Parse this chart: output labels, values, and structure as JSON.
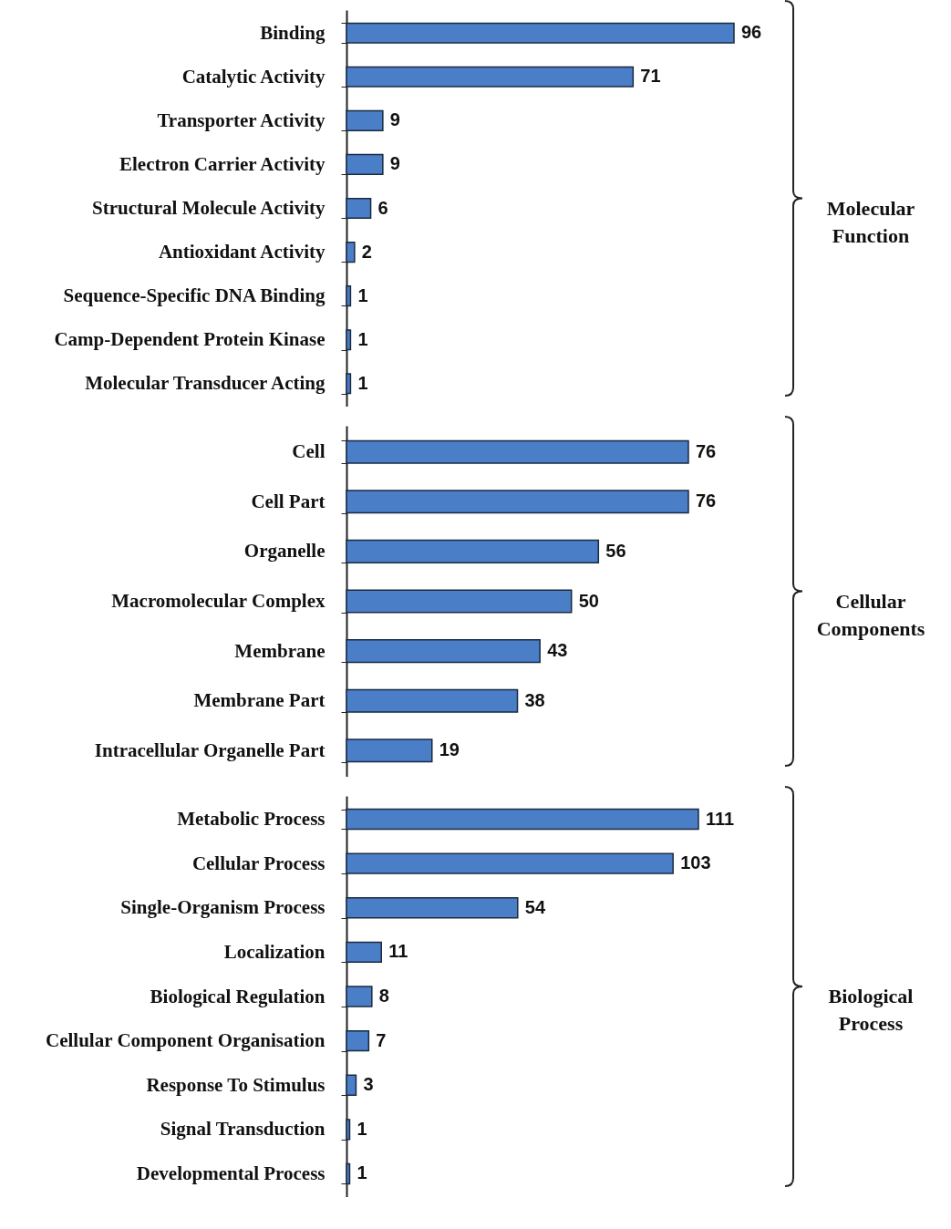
{
  "chart_data": [
    {
      "type": "bar",
      "orientation": "horizontal",
      "annotations": [
        "Molecular Function"
      ],
      "categories": [
        "Binding",
        "Catalytic Activity",
        "Transporter Activity",
        "Electron Carrier Activity",
        "Structural Molecule Activity",
        "Antioxidant Activity",
        "Sequence-Specific DNA Binding",
        "Camp-Dependent Protein Kinase",
        "Molecular Transducer Acting"
      ],
      "values": [
        96,
        71,
        9,
        9,
        6,
        2,
        1,
        1,
        1
      ],
      "color": "#4a7ec6",
      "data_labels": true,
      "tick_labels": "y"
    },
    {
      "type": "bar",
      "orientation": "horizontal",
      "annotations": [
        "Cellular Components"
      ],
      "categories": [
        "Cell",
        "Cell Part",
        "Organelle",
        "Macromolecular Complex",
        "Membrane",
        "Membrane Part",
        "Intracellular Organelle Part"
      ],
      "values": [
        76,
        76,
        56,
        50,
        43,
        38,
        19
      ],
      "color": "#4a7ec6",
      "data_labels": true,
      "tick_labels": "y"
    },
    {
      "type": "bar",
      "orientation": "horizontal",
      "annotations": [
        "Biological Process"
      ],
      "categories": [
        "Metabolic Process",
        "Cellular Process",
        "Single-Organism Process",
        "Localization",
        "Biological Regulation",
        "Cellular Component Organisation",
        "Response To Stimulus",
        "Signal Transduction",
        "Developmental Process"
      ],
      "values": [
        111,
        103,
        54,
        11,
        8,
        7,
        3,
        1,
        1
      ],
      "color": "#4a7ec6",
      "data_labels": true,
      "tick_labels": "y"
    }
  ]
}
